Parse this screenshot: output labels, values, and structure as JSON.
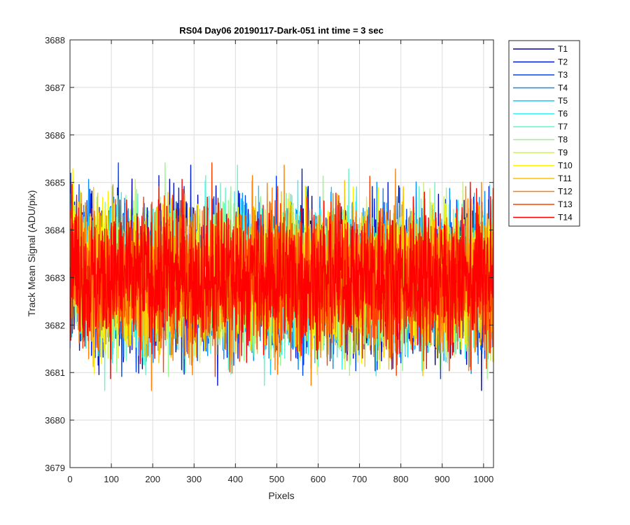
{
  "chart_data": {
    "type": "line",
    "title": "RS04 Day06 20190117-Dark-051 int time = 3 sec",
    "xlabel": "Pixels",
    "ylabel": "Track Mean Signal (ADU/pix)",
    "xlim": [
      0,
      1024
    ],
    "ylim": [
      3679,
      3688
    ],
    "xticks": [
      0,
      100,
      200,
      300,
      400,
      500,
      600,
      700,
      800,
      900,
      1000
    ],
    "yticks": [
      3679,
      3680,
      3681,
      3682,
      3683,
      3684,
      3685,
      3686,
      3687,
      3688
    ],
    "grid": true,
    "legend_position": "outside-top-right",
    "n_points": 1024,
    "approx_mean": 3683,
    "approx_std": 1.0,
    "series": [
      {
        "name": "T1",
        "color": "#0000A8"
      },
      {
        "name": "T2",
        "color": "#0019D8"
      },
      {
        "name": "T3",
        "color": "#0046F0"
      },
      {
        "name": "T4",
        "color": "#0A8CF5"
      },
      {
        "name": "T5",
        "color": "#1FC5F5"
      },
      {
        "name": "T6",
        "color": "#33F0F0"
      },
      {
        "name": "T7",
        "color": "#66F5C8"
      },
      {
        "name": "T8",
        "color": "#99F58C"
      },
      {
        "name": "T9",
        "color": "#CCF550"
      },
      {
        "name": "T10",
        "color": "#FFF000"
      },
      {
        "name": "T11",
        "color": "#FFC000"
      },
      {
        "name": "T12",
        "color": "#FF8000"
      },
      {
        "name": "T13",
        "color": "#FF4000"
      },
      {
        "name": "T14",
        "color": "#FF0000"
      }
    ]
  }
}
